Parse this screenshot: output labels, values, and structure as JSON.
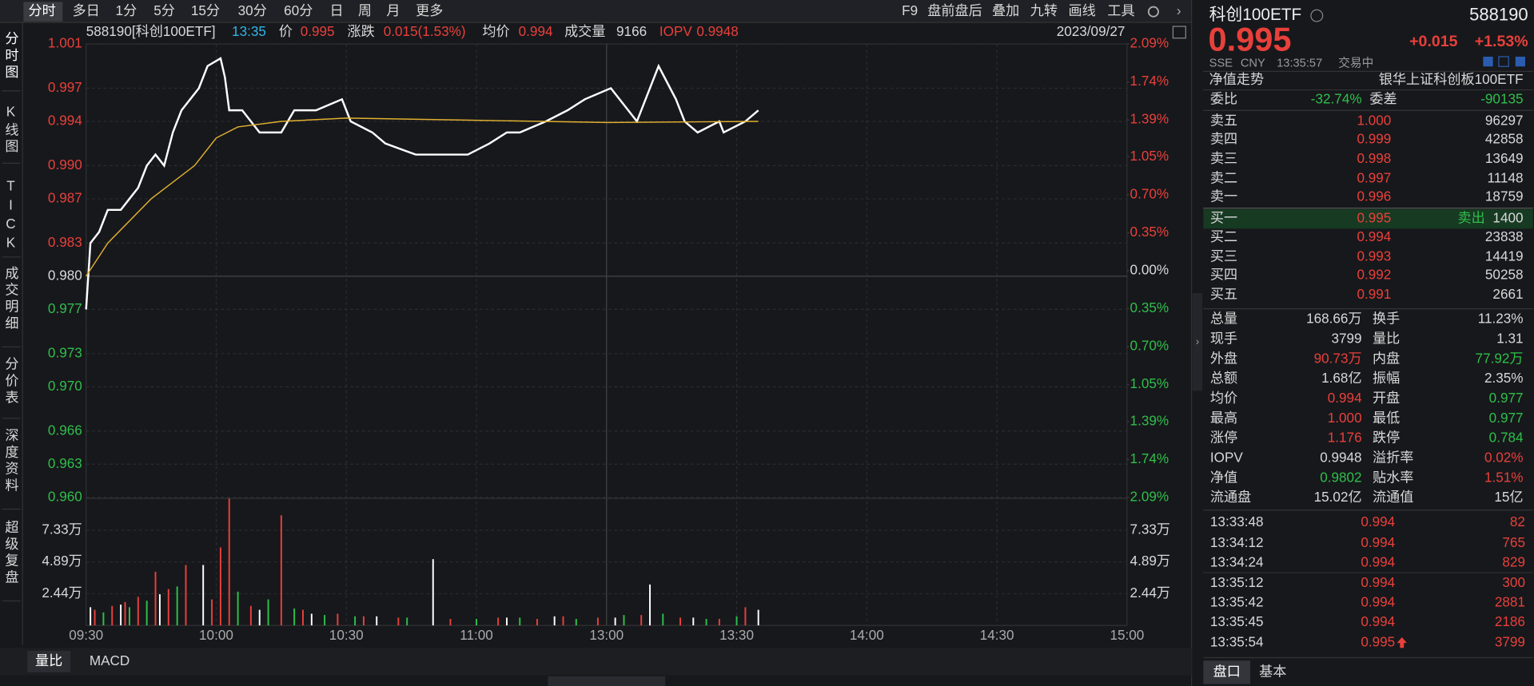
{
  "toolbar": {
    "left": [
      "分时",
      "多日",
      "1分",
      "5分",
      "15分",
      "30分",
      "60分",
      "日",
      "周",
      "月",
      "更多"
    ],
    "right": [
      "F9",
      "盘前盘后",
      "叠加",
      "九转",
      "画线",
      "工具"
    ]
  },
  "side_tabs": [
    "分时图",
    "K线图",
    "TICK",
    "成交明细",
    "分价表",
    "深度资料",
    "超级复盘"
  ],
  "info_bar": {
    "code_name": "588190[科创100ETF]",
    "time": "13:35",
    "price_label": "价",
    "price": "0.995",
    "change_label": "涨跌",
    "change": "0.015(1.53%)",
    "avg_label": "均价",
    "avg": "0.994",
    "vol_label": "成交量",
    "vol": "9166",
    "iopv_label": "IOPV",
    "iopv": "0.9948",
    "date": "2023/09/27"
  },
  "chart_data": [
    {
      "type": "line",
      "xlim": [
        0,
        240
      ],
      "xticks": [
        {
          "value": 0,
          "label": "09:30"
        },
        {
          "value": 30,
          "label": "10:00"
        },
        {
          "value": 60,
          "label": "10:30"
        },
        {
          "value": 90,
          "label": "11:00"
        },
        {
          "value": 120,
          "label": "13:00"
        },
        {
          "value": 150,
          "label": "13:30"
        },
        {
          "value": 180,
          "label": "14:00"
        },
        {
          "value": 210,
          "label": "14:30"
        },
        {
          "value": 240,
          "label": "15:00"
        }
      ],
      "ylim": [
        0.96,
        1.001
      ],
      "yticks": [
        1.001,
        0.997,
        0.994,
        {
          "value": 0.99,
          "label": "0.990"
        },
        0.987,
        0.983,
        {
          "value": 0.98,
          "label": "0.980"
        },
        0.977,
        0.973,
        {
          "value": 0.97,
          "label": "0.970"
        },
        0.966,
        0.963,
        {
          "value": 0.96,
          "label": "0.960"
        }
      ],
      "y2lim": [
        -2.09,
        2.09
      ],
      "y2ticks": [
        {
          "value": 2.09,
          "label": "2.09%"
        },
        {
          "value": 1.74,
          "label": "1.74%"
        },
        {
          "value": 1.39,
          "label": "1.39%"
        },
        {
          "value": 1.05,
          "label": "1.05%"
        },
        {
          "value": 0.7,
          "label": "0.70%"
        },
        {
          "value": 0.35,
          "label": "0.35%"
        },
        {
          "value": 0,
          "label": "0.00%"
        },
        {
          "value": -0.35,
          "label": "0.35%"
        },
        {
          "value": -0.7,
          "label": "0.70%"
        },
        {
          "value": -1.05,
          "label": "1.05%"
        },
        {
          "value": -1.39,
          "label": "1.39%"
        },
        {
          "value": -1.74,
          "label": "1.74%"
        },
        {
          "value": -2.09,
          "label": "2.09%"
        }
      ],
      "grid": true,
      "series": [
        {
          "color": "#ffffff",
          "x": [
            0,
            1,
            3,
            5,
            8,
            10,
            12,
            14,
            16,
            18,
            20,
            22,
            24,
            26,
            28,
            31,
            32,
            33,
            36,
            40,
            45,
            48,
            53,
            59,
            61,
            66,
            69,
            76,
            82,
            88,
            93,
            97,
            100,
            106,
            111,
            115,
            121,
            125,
            127,
            131,
            132,
            136,
            138,
            141,
            146,
            147,
            152,
            155
          ],
          "values": [
            0.977,
            0.983,
            0.984,
            0.986,
            0.986,
            0.987,
            0.988,
            0.99,
            0.991,
            0.99,
            0.993,
            0.995,
            0.996,
            0.997,
            0.999,
            0.9997,
            0.998,
            0.995,
            0.995,
            0.993,
            0.993,
            0.995,
            0.995,
            0.996,
            0.994,
            0.993,
            0.992,
            0.991,
            0.991,
            0.991,
            0.992,
            0.993,
            0.993,
            0.994,
            0.995,
            0.996,
            0.997,
            0.995,
            0.994,
            0.998,
            0.999,
            0.996,
            0.994,
            0.993,
            0.994,
            0.993,
            0.994,
            0.995
          ]
        },
        {
          "color": "#e0b030",
          "x": [
            0,
            5,
            15,
            25,
            30,
            35,
            45,
            60,
            90,
            120,
            155
          ],
          "values": [
            0.98,
            0.983,
            0.987,
            0.99,
            0.9925,
            0.9935,
            0.994,
            0.9943,
            0.9941,
            0.9939,
            0.994
          ]
        }
      ]
    },
    {
      "type": "bar",
      "xlim": [
        0,
        240
      ],
      "ylim": [
        0,
        97800
      ],
      "yticks": [
        {
          "value": 73300,
          "label": "7.33万"
        },
        {
          "value": 48900,
          "label": "4.89万"
        },
        {
          "value": 24400,
          "label": "2.44万"
        }
      ],
      "series": [
        {
          "color": "#e8403a",
          "x": [
            2,
            6,
            9,
            12,
            16,
            19,
            23,
            29,
            31,
            33,
            38,
            45,
            50,
            58,
            64,
            72,
            84,
            95,
            104,
            110,
            118,
            128,
            137,
            146,
            152
          ],
          "values": [
            12000,
            15000,
            18000,
            22000,
            41300,
            28000,
            46500,
            20000,
            60000,
            97600,
            15000,
            84800,
            12000,
            9000,
            7000,
            6000,
            5000,
            6000,
            5000,
            7000,
            6000,
            8000,
            6000,
            5000,
            14000
          ]
        },
        {
          "color": "#2fbf4a",
          "x": [
            4,
            10,
            14,
            21,
            35,
            42,
            48,
            55,
            62,
            74,
            90,
            100,
            113,
            124,
            133,
            143,
            150
          ],
          "values": [
            10000,
            14000,
            19000,
            30000,
            26000,
            20000,
            13000,
            8000,
            7000,
            6000,
            5000,
            6000,
            5000,
            8000,
            9000,
            5000,
            7000
          ]
        },
        {
          "color": "#ffffff",
          "x": [
            1,
            8,
            17,
            27,
            40,
            52,
            67,
            80,
            97,
            108,
            122,
            130,
            140,
            155
          ],
          "values": [
            14000,
            16000,
            24000,
            46500,
            12000,
            9000,
            7000,
            51000,
            6000,
            7000,
            6000,
            31500,
            6000,
            12000
          ]
        }
      ]
    }
  ],
  "bottom_tabs": [
    "量比",
    "MACD"
  ],
  "quote": {
    "name": "科创100ETF",
    "code": "588190",
    "price": "0.995",
    "change": "+0.015",
    "pct": "+1.53%",
    "meta": [
      "SSE",
      "CNY",
      "13:35:57",
      "交易中"
    ],
    "nav_trend": "净值走势",
    "fund": "银华上证科创板100ETF",
    "ratio": [
      "委比",
      "-32.74%",
      "委差",
      "-90135"
    ],
    "asks": [
      [
        "卖五",
        "1.000",
        "96297"
      ],
      [
        "卖四",
        "0.999",
        "42858"
      ],
      [
        "卖三",
        "0.998",
        "13649"
      ],
      [
        "卖二",
        "0.997",
        "11148"
      ],
      [
        "卖一",
        "0.996",
        "18759"
      ]
    ],
    "bid1_note": "卖出",
    "bids": [
      [
        "买一",
        "0.995",
        "1400"
      ],
      [
        "买二",
        "0.994",
        "23838"
      ],
      [
        "买三",
        "0.993",
        "14419"
      ],
      [
        "买四",
        "0.992",
        "50258"
      ],
      [
        "买五",
        "0.991",
        "2661"
      ]
    ],
    "stats": [
      [
        "总量",
        "168.66万",
        "换手",
        "11.23%"
      ],
      [
        "现手",
        "3799",
        "量比",
        "1.31"
      ],
      [
        "外盘",
        "90.73万",
        "内盘",
        "77.92万"
      ],
      [
        "总额",
        "1.68亿",
        "振幅",
        "2.35%"
      ],
      [
        "均价",
        "0.994",
        "开盘",
        "0.977"
      ],
      [
        "最高",
        "1.000",
        "最低",
        "0.977"
      ],
      [
        "涨停",
        "1.176",
        "跌停",
        "0.784"
      ],
      [
        "IOPV",
        "0.9948",
        "溢折率",
        "0.02%"
      ],
      [
        "净值",
        "0.9802",
        "贴水率",
        "1.51%"
      ],
      [
        "流通盘",
        "15.02亿",
        "流通值",
        "15亿"
      ]
    ],
    "ticks": [
      [
        "13:33:48",
        "0.994",
        "82"
      ],
      [
        "13:34:12",
        "0.994",
        "765"
      ],
      [
        "13:34:24",
        "0.994",
        "829"
      ],
      [
        "13:35:12",
        "0.994",
        "300"
      ],
      [
        "13:35:42",
        "0.994",
        "2881"
      ],
      [
        "13:35:45",
        "0.994",
        "2186"
      ],
      [
        "13:35:54",
        "0.995",
        "3799"
      ]
    ],
    "tabs": [
      "盘口",
      "基本"
    ]
  }
}
